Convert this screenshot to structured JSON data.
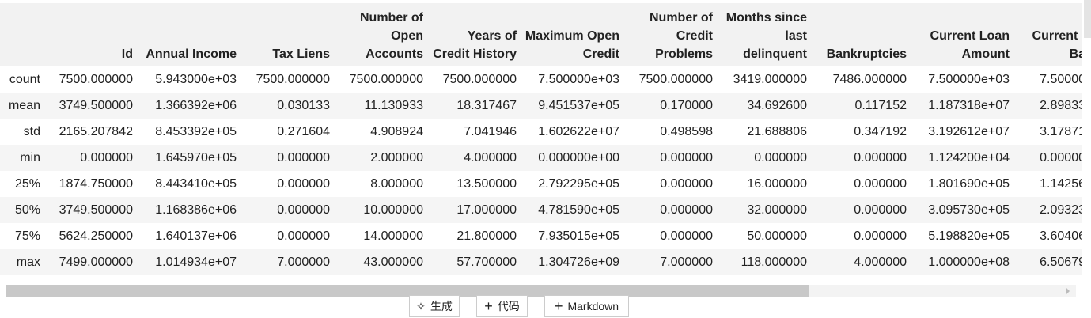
{
  "table": {
    "columns": [
      "",
      "Id",
      "Annual Income",
      "Tax Liens",
      "Number of Open Accounts",
      "Years of Credit History",
      "Maximum Open Credit",
      "Number of Credit Problems",
      "Months since last delinquent",
      "Bankruptcies",
      "Current Loan Amount",
      "Current Credit Balance"
    ],
    "rows": [
      [
        "count",
        "7500.000000",
        "5.943000e+03",
        "7500.000000",
        "7500.000000",
        "7500.000000",
        "7.500000e+03",
        "7500.000000",
        "3419.000000",
        "7486.000000",
        "7.500000e+03",
        "7.50000"
      ],
      [
        "mean",
        "3749.500000",
        "1.366392e+06",
        "0.030133",
        "11.130933",
        "18.317467",
        "9.451537e+05",
        "0.170000",
        "34.692600",
        "0.117152",
        "1.187318e+07",
        "2.89833"
      ],
      [
        "std",
        "2165.207842",
        "8.453392e+05",
        "0.271604",
        "4.908924",
        "7.041946",
        "1.602622e+07",
        "0.498598",
        "21.688806",
        "0.347192",
        "3.192612e+07",
        "3.17871"
      ],
      [
        "min",
        "0.000000",
        "1.645970e+05",
        "0.000000",
        "2.000000",
        "4.000000",
        "0.000000e+00",
        "0.000000",
        "0.000000",
        "0.000000",
        "1.124200e+04",
        "0.00000"
      ],
      [
        "25%",
        "1874.750000",
        "8.443410e+05",
        "0.000000",
        "8.000000",
        "13.500000",
        "2.792295e+05",
        "0.000000",
        "16.000000",
        "0.000000",
        "1.801690e+05",
        "1.14256"
      ],
      [
        "50%",
        "3749.500000",
        "1.168386e+06",
        "0.000000",
        "10.000000",
        "17.000000",
        "4.781590e+05",
        "0.000000",
        "32.000000",
        "0.000000",
        "3.095730e+05",
        "2.09323"
      ],
      [
        "75%",
        "5624.250000",
        "1.640137e+06",
        "0.000000",
        "14.000000",
        "21.800000",
        "7.935015e+05",
        "0.000000",
        "50.000000",
        "0.000000",
        "5.198820e+05",
        "3.60406"
      ],
      [
        "max",
        "7499.000000",
        "1.014934e+07",
        "7.000000",
        "43.000000",
        "57.700000",
        "1.304726e+09",
        "7.000000",
        "118.000000",
        "4.000000",
        "1.000000e+08",
        "6.50679"
      ]
    ]
  },
  "buttons": [
    "生成",
    "代码",
    "Markdown"
  ]
}
